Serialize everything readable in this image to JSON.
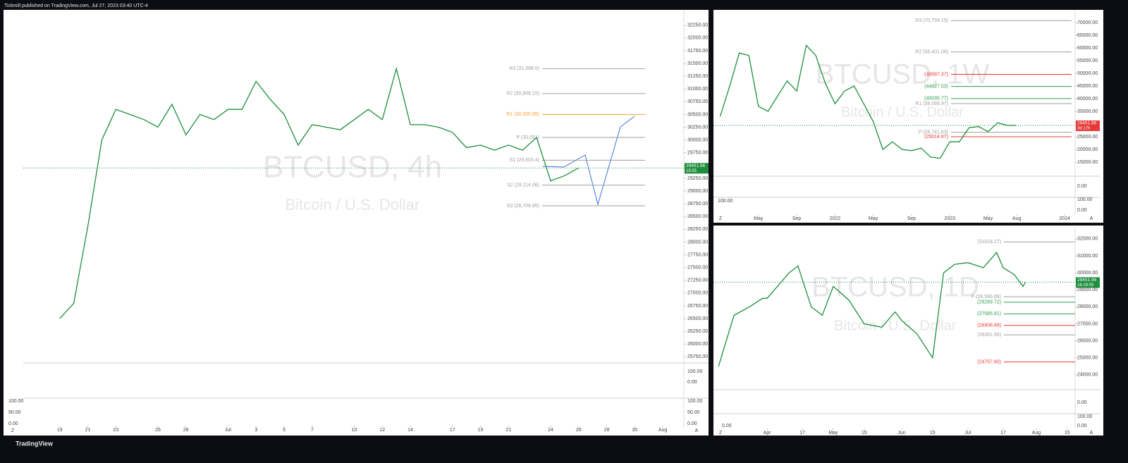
{
  "header": {
    "text": "Tickmill published on TradingView.com, Jul 27, 2023 03:40 UTC-4"
  },
  "footer": {
    "logo": "TradingView"
  },
  "chart_data": [
    {
      "type": "line",
      "title": "BTCUSD, 4h",
      "subtitle": "Bitcoin / U.S. Dollar",
      "color": "#1e8e3e",
      "x": [
        0,
        1,
        2,
        3,
        4,
        5,
        6,
        7,
        8,
        9,
        10,
        11,
        12,
        13,
        14,
        15,
        16,
        17,
        18,
        19,
        20,
        21,
        22,
        23,
        24,
        25,
        26,
        27,
        28,
        29,
        30,
        31,
        32,
        33,
        34,
        35,
        36,
        37
      ],
      "values": [
        26500,
        26800,
        28300,
        30000,
        30600,
        30500,
        30400,
        30250,
        30700,
        30100,
        30500,
        30400,
        30600,
        30600,
        31150,
        30800,
        30500,
        29900,
        30300,
        30250,
        30200,
        30400,
        30600,
        30400,
        31400,
        30300,
        30300,
        30250,
        30150,
        29850,
        29900,
        29800,
        29900,
        29800,
        30050,
        29200,
        29300,
        29451.96
      ],
      "xlim": [
        -2.6,
        44.5
      ],
      "xticks": [
        {
          "value": 0,
          "label": "19"
        },
        {
          "value": 2,
          "label": "21"
        },
        {
          "value": 4,
          "label": "23"
        },
        {
          "value": 7,
          "label": "26"
        },
        {
          "value": 9,
          "label": "28"
        },
        {
          "value": 12,
          "label": "Jul"
        },
        {
          "value": 14,
          "label": "3"
        },
        {
          "value": 16,
          "label": "5"
        },
        {
          "value": 18,
          "label": "7"
        },
        {
          "value": 21,
          "label": "10"
        },
        {
          "value": 23,
          "label": "12"
        },
        {
          "value": 25,
          "label": "14"
        },
        {
          "value": 28,
          "label": "17"
        },
        {
          "value": 30,
          "label": "19"
        },
        {
          "value": 32,
          "label": "21"
        },
        {
          "value": 35,
          "label": "24"
        },
        {
          "value": 37,
          "label": "26"
        },
        {
          "value": 39,
          "label": "28"
        },
        {
          "value": 41,
          "label": "30"
        },
        {
          "value": 43,
          "label": "Aug"
        }
      ],
      "ylim": [
        25700,
        32550
      ],
      "yticks": [
        {
          "value": 25750,
          "label": "25750.00"
        },
        {
          "value": 26000,
          "label": "26000.00"
        },
        {
          "value": 26250,
          "label": "26250.00"
        },
        {
          "value": 26500,
          "label": "26500.00"
        },
        {
          "value": 26750,
          "label": "26750.00"
        },
        {
          "value": 27000,
          "label": "27000.00"
        },
        {
          "value": 27250,
          "label": "27250.00"
        },
        {
          "value": 27500,
          "label": "27500.00"
        },
        {
          "value": 27750,
          "label": "27750.00"
        },
        {
          "value": 28000,
          "label": "28000.00"
        },
        {
          "value": 28250,
          "label": "28250.00"
        },
        {
          "value": 28500,
          "label": "28500.00"
        },
        {
          "value": 28750,
          "label": "28750.00"
        },
        {
          "value": 29000,
          "label": "29000.00"
        },
        {
          "value": 29250,
          "label": "29250.00"
        },
        {
          "value": 29500,
          "label": "29500.00"
        },
        {
          "value": 29750,
          "label": "29750.00"
        },
        {
          "value": 30000,
          "label": "30000.00"
        },
        {
          "value": 30250,
          "label": "30250.00"
        },
        {
          "value": 30500,
          "label": "30500.00"
        },
        {
          "value": 30750,
          "label": "30750.00"
        },
        {
          "value": 31000,
          "label": "31000.00"
        },
        {
          "value": 31250,
          "label": "31250.00"
        },
        {
          "value": 31500,
          "label": "31500.00"
        },
        {
          "value": 31750,
          "label": "31750.00"
        },
        {
          "value": 32000,
          "label": "32000.00"
        },
        {
          "value": 32250,
          "label": "32250.00"
        }
      ],
      "levels": [
        {
          "label": "R3 (31,398.5)",
          "value": 31398.5,
          "color": "#9e9e9e"
        },
        {
          "label": "R2 (30,909.15)",
          "value": 30909.15,
          "color": "#9e9e9e"
        },
        {
          "label": "R1 (30,500.65)",
          "value": 30500.65,
          "color": "#f0a030"
        },
        {
          "label": "P (30,051)",
          "value": 30051,
          "color": "#9e9e9e"
        },
        {
          "label": "S1 (29,603.4)",
          "value": 29603.4,
          "color": "#9e9e9e"
        },
        {
          "label": "S2 (29,114.06)",
          "value": 29114.06,
          "color": "#9e9e9e"
        },
        {
          "label": "S3 (28,709.85)",
          "value": 28709.85,
          "color": "#9e9e9e"
        }
      ],
      "last_price": {
        "value": 29451.96,
        "label": "29451.96"
      },
      "countdown": "19:55",
      "indicator_labels": [
        "100.00",
        "0.00",
        "100.00",
        "50.00",
        "0.00",
        "100.00",
        "50.00",
        "0.00"
      ],
      "buttons": [
        "Z",
        "A"
      ]
    },
    {
      "type": "line",
      "title": "BTCUSD, 1W",
      "subtitle": "Bitcoin / U.S. Dollar",
      "color": "#1e8e3e",
      "x": [
        0,
        1,
        2,
        3,
        4,
        5,
        6,
        7,
        8,
        9,
        10,
        11,
        12,
        13,
        14,
        15,
        16,
        17,
        18,
        19,
        20,
        21,
        22,
        23,
        24,
        25,
        26,
        27,
        28,
        29,
        30,
        30.9
      ],
      "values": [
        33000,
        45000,
        58000,
        57000,
        37000,
        35000,
        41000,
        47000,
        43000,
        61000,
        57000,
        46000,
        38000,
        43000,
        45000,
        38000,
        31000,
        20000,
        23000,
        20000,
        19500,
        20500,
        17000,
        16500,
        23000,
        23000,
        28500,
        29000,
        27000,
        30500,
        29500,
        29451.96
      ],
      "xlim": [
        -0.7,
        37.1
      ],
      "xticks": [
        {
          "value": 4,
          "label": "May"
        },
        {
          "value": 8,
          "label": "Sep"
        },
        {
          "value": 12,
          "label": "2022"
        },
        {
          "value": 16,
          "label": "May"
        },
        {
          "value": 20,
          "label": "Sep"
        },
        {
          "value": 24,
          "label": "2023"
        },
        {
          "value": 28,
          "label": "May"
        },
        {
          "value": 31,
          "label": "Aug"
        },
        {
          "value": 36,
          "label": "2024"
        }
      ],
      "ylim": [
        10000,
        75000
      ],
      "yticks": [
        {
          "value": 15000,
          "label": "15000.00"
        },
        {
          "value": 20000,
          "label": "20000.00"
        },
        {
          "value": 25000,
          "label": "25000.00"
        },
        {
          "value": 30000,
          "label": "30000.00"
        },
        {
          "value": 35000,
          "label": "35000.00"
        },
        {
          "value": 40000,
          "label": "40000.00"
        },
        {
          "value": 45000,
          "label": "45000.00"
        },
        {
          "value": 50000,
          "label": "50000.00"
        },
        {
          "value": 55000,
          "label": "55000.00"
        },
        {
          "value": 60000,
          "label": "60000.00"
        },
        {
          "value": 65000,
          "label": "65000.00"
        },
        {
          "value": 70000,
          "label": "70000.00"
        }
      ],
      "levels": [
        {
          "label": "R3 (70,759.15)",
          "value": 70759.15,
          "color": "#9e9e9e"
        },
        {
          "label": "R2 (58,401.06)",
          "value": 58401.06,
          "color": "#9e9e9e"
        },
        {
          "label": "(49587.37)",
          "value": 49587.37,
          "color": "#e53935"
        },
        {
          "label": "(44827.03)",
          "value": 44827.03,
          "color": "#2e9e4a"
        },
        {
          "label": "(40035.77)",
          "value": 40035.77,
          "color": "#2e9e4a"
        },
        {
          "label": "R1 (38,069.97)",
          "value": 38069.97,
          "color": "#9e9e9e"
        },
        {
          "label": "P (26,741.63)",
          "value": 26741.63,
          "color": "#9e9e9e"
        },
        {
          "label": "(25014.87)",
          "value": 25014.87,
          "color": "#e53935"
        }
      ],
      "last_price": {
        "value": 29451.96,
        "label": "29451.96"
      },
      "countdown": "3d 17h",
      "indicator_labels": [
        "0.00",
        "100.00",
        "0.00",
        "100.00"
      ],
      "buttons": [
        "Z",
        "A"
      ]
    },
    {
      "type": "line",
      "title": "BTCUSD, 1D",
      "subtitle": "Bitcoin / U.S. Dollar",
      "color": "#1e8e3e",
      "x": [
        -22,
        -15,
        -8,
        -2,
        0,
        10,
        14,
        20,
        25,
        30,
        37,
        44,
        52,
        58,
        61,
        68,
        75,
        80,
        85,
        91,
        98,
        104,
        107,
        112,
        116,
        117
      ],
      "values": [
        24500,
        27500,
        28000,
        28500,
        28500,
        30000,
        30400,
        28000,
        27500,
        29200,
        28400,
        27000,
        26800,
        27700,
        27200,
        26400,
        25000,
        30000,
        30500,
        30600,
        30300,
        31200,
        30300,
        29900,
        29200,
        29451.96
      ],
      "xlim": [
        -24.3,
        139.6
      ],
      "xticks": [
        {
          "value": 0,
          "label": "Apr"
        },
        {
          "value": 16,
          "label": "17"
        },
        {
          "value": 30,
          "label": "May"
        },
        {
          "value": 44,
          "label": "15"
        },
        {
          "value": 61,
          "label": "Jun"
        },
        {
          "value": 75,
          "label": "15"
        },
        {
          "value": 91,
          "label": "Jul"
        },
        {
          "value": 107,
          "label": "17"
        },
        {
          "value": 122,
          "label": "Aug"
        },
        {
          "value": 136,
          "label": "15"
        }
      ],
      "ylim": [
        23250,
        32700
      ],
      "yticks": [
        {
          "value": 24000,
          "label": "24000.00"
        },
        {
          "value": 25000,
          "label": "25000.00"
        },
        {
          "value": 26000,
          "label": "26000.00"
        },
        {
          "value": 27000,
          "label": "27000.00"
        },
        {
          "value": 28000,
          "label": "28000.00"
        },
        {
          "value": 29000,
          "label": "29000.00"
        },
        {
          "value": 30000,
          "label": "30000.00"
        },
        {
          "value": 31000,
          "label": "31000.00"
        },
        {
          "value": 32000,
          "label": "32000.00"
        }
      ],
      "levels": [
        {
          "label": "(31818.27)",
          "value": 31818.27,
          "color": "#9e9e9e"
        },
        {
          "label": "P (28,596.66)",
          "value": 28596.66,
          "color": "#9e9e9e"
        },
        {
          "label": "(28269.72)",
          "value": 28269.72,
          "color": "#2e9e4a"
        },
        {
          "label": "(27585.61)",
          "value": 27585.61,
          "color": "#2e9e4a"
        },
        {
          "label": "(26908.89)",
          "value": 26908.89,
          "color": "#e53935"
        },
        {
          "label": "(26351.56)",
          "value": 26351.56,
          "color": "#9e9e9e"
        },
        {
          "label": "(24757.60)",
          "value": 24757.6,
          "color": "#e53935"
        }
      ],
      "last_price": {
        "value": 29451.96,
        "label": "29451.96"
      },
      "countdown": "16:19:05",
      "indicator_labels": [
        "0.00",
        "100.00",
        "0.00",
        "0.00"
      ],
      "buttons": [
        "Z",
        "A"
      ]
    }
  ]
}
